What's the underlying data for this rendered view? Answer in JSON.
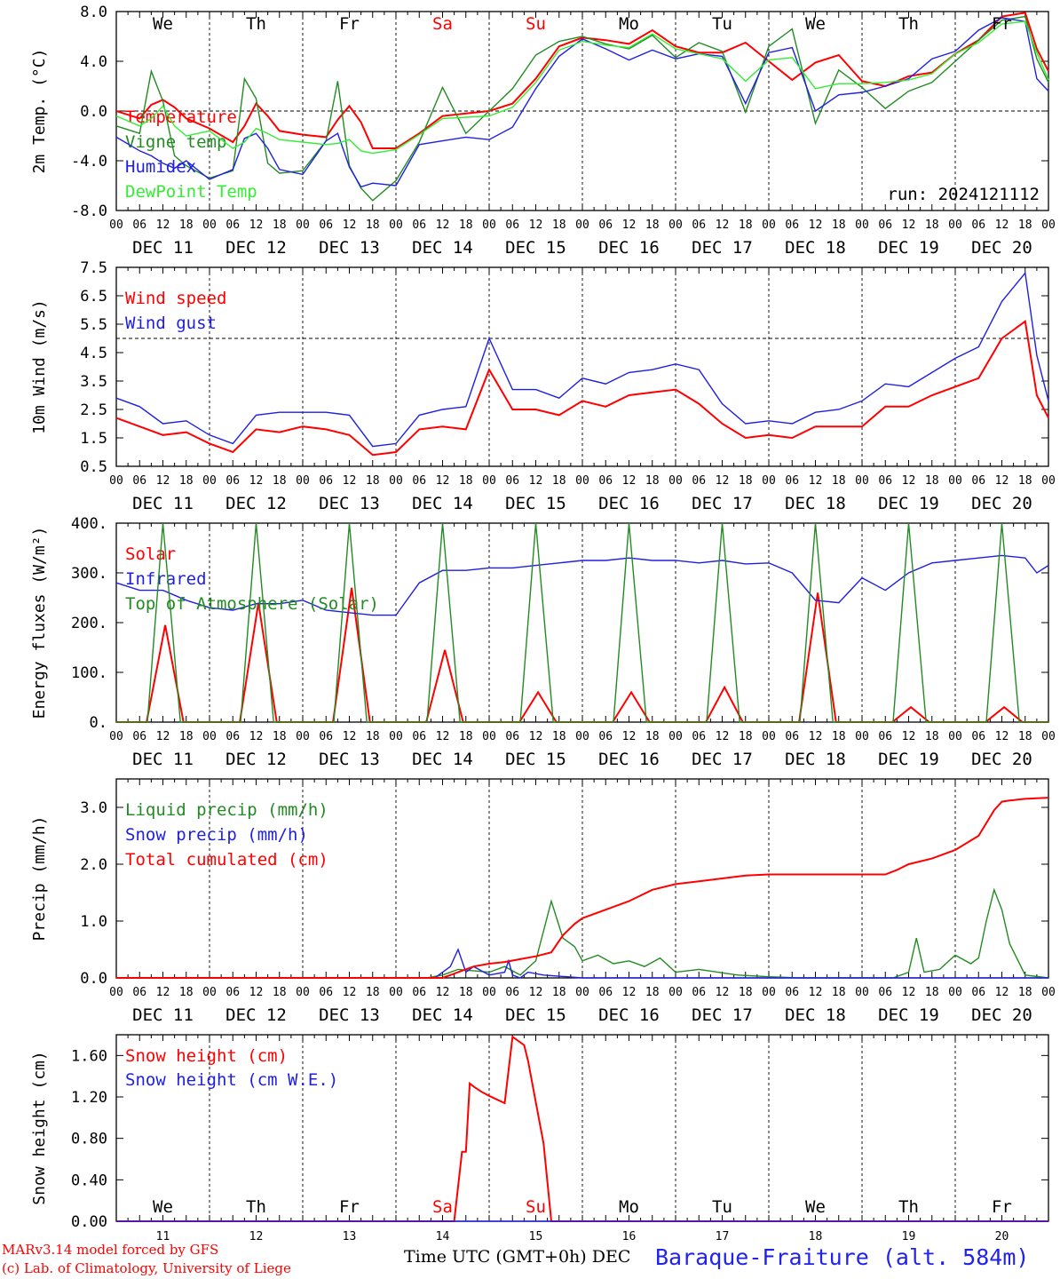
{
  "footer": {
    "model_line": "MARv3.14 model forced by GFS",
    "lab_line": "(c) Lab. of Climatology, University of Liege",
    "time_axis": "Time UTC (GMT+0h) DEC",
    "station": "Baraque-Fraiture (alt. 584m)",
    "run": "run: 2024121112"
  },
  "colors": {
    "red": "#ff0000",
    "green": "#228b22",
    "blue": "#1f1fe0",
    "lightgreen": "#33ee33",
    "axis": "#000000"
  },
  "top_weekdays": [
    "We",
    "Th",
    "Fr",
    "Sa",
    "Su",
    "Mo",
    "Tu",
    "We",
    "Th",
    "Fr"
  ],
  "bottom_weekdays": [
    "We",
    "Th",
    "Fr",
    "Sa",
    "Su",
    "Mo",
    "Tu",
    "We",
    "Th",
    "Fr"
  ],
  "bottom_day_numbers": [
    "11",
    "12",
    "13",
    "14",
    "15",
    "16",
    "17",
    "18",
    "19",
    "20"
  ],
  "date_labels": [
    "DEC 11",
    "DEC 12",
    "DEC 13",
    "DEC 14",
    "DEC 15",
    "DEC 16",
    "DEC 17",
    "DEC 18",
    "DEC 19",
    "DEC 20"
  ],
  "hour_labels": [
    "00",
    "06",
    "12",
    "18"
  ],
  "chart_data": [
    {
      "type": "line",
      "ylabel": "2m Temp. (°C)",
      "ylim": [
        -8,
        8
      ],
      "yticks": [
        "8.0",
        "4.0",
        "0.0",
        "-4.0",
        "-8.0"
      ],
      "ref_line": 0,
      "x_unit": "hours since DEC 11 00 UTC",
      "series": [
        {
          "name": "Temperature",
          "color": "red",
          "x": [
            0,
            6,
            9,
            12,
            15,
            18,
            24,
            30,
            33,
            36,
            39,
            42,
            48,
            54,
            57,
            60,
            63,
            66,
            72,
            78,
            84,
            90,
            96,
            102,
            108,
            114,
            120,
            126,
            132,
            138,
            144,
            150,
            156,
            162,
            168,
            174,
            180,
            186,
            192,
            198,
            204,
            210,
            216,
            222,
            228,
            234,
            237,
            240
          ],
          "y": [
            0,
            -0.6,
            0.5,
            0.9,
            0.3,
            -0.6,
            -1.4,
            -2.5,
            -1.2,
            0.6,
            -0.4,
            -1.6,
            -1.9,
            -2.1,
            -0.7,
            0.4,
            -0.9,
            -3.0,
            -3.0,
            -1.8,
            -0.4,
            -0.2,
            0,
            0.6,
            2.6,
            5.2,
            5.9,
            5.7,
            5.4,
            6.5,
            5.2,
            4.7,
            4.7,
            5.5,
            4.0,
            2.5,
            3.9,
            4.5,
            2.4,
            2.0,
            2.8,
            3.1,
            4.6,
            5.7,
            7.6,
            7.9,
            5.0,
            3.2
          ]
        },
        {
          "name": "Vigne temp",
          "color": "green",
          "x": [
            0,
            6,
            9,
            12,
            15,
            18,
            24,
            30,
            33,
            36,
            39,
            42,
            48,
            54,
            57,
            60,
            63,
            66,
            72,
            78,
            84,
            90,
            96,
            102,
            108,
            114,
            120,
            126,
            132,
            138,
            144,
            150,
            156,
            162,
            168,
            174,
            180,
            186,
            192,
            198,
            204,
            210,
            216,
            222,
            228,
            234,
            237,
            240
          ],
          "y": [
            -1.2,
            -1.8,
            3.2,
            0.8,
            -3.6,
            -4.4,
            -5.4,
            -4.8,
            2.6,
            1.0,
            -4.2,
            -5.0,
            -4.8,
            -2.4,
            2.4,
            -4.4,
            -6.2,
            -7.2,
            -5.6,
            -2.5,
            1.9,
            -1.8,
            0,
            1.8,
            4.5,
            5.6,
            6.0,
            5.4,
            5.0,
            6.1,
            4.3,
            5.5,
            4.8,
            -0.1,
            5.2,
            6.6,
            -1.0,
            3.3,
            1.9,
            0.2,
            1.6,
            2.3,
            4.0,
            5.7,
            7.3,
            7.6,
            4.2,
            2.3
          ]
        },
        {
          "name": "Humidex",
          "color": "blue",
          "x": [
            0,
            6,
            9,
            12,
            15,
            18,
            24,
            30,
            33,
            36,
            39,
            42,
            48,
            54,
            57,
            60,
            63,
            66,
            72,
            78,
            84,
            90,
            96,
            102,
            108,
            114,
            120,
            126,
            132,
            138,
            144,
            150,
            156,
            162,
            168,
            174,
            180,
            186,
            192,
            198,
            204,
            210,
            216,
            222,
            228,
            234,
            237,
            240
          ],
          "y": [
            -2.1,
            -3.2,
            -3.6,
            -4.2,
            -4.6,
            -4.0,
            -5.5,
            -4.7,
            -2.2,
            -1.8,
            -3.0,
            -4.7,
            -5.1,
            -2.4,
            -1.8,
            -4.5,
            -6.1,
            -5.8,
            -6.0,
            -2.7,
            -2.4,
            -2.1,
            -2.3,
            -1.3,
            1.8,
            4.4,
            5.8,
            5.0,
            4.1,
            4.9,
            4.2,
            4.6,
            4.4,
            0.6,
            4.7,
            5.1,
            0.0,
            1.3,
            1.5,
            2.0,
            2.6,
            4.2,
            4.8,
            6.5,
            7.5,
            7.2,
            2.6,
            1.6
          ]
        },
        {
          "name": "DewPoint Temp",
          "color": "lightgreen",
          "x": [
            0,
            6,
            9,
            12,
            15,
            18,
            24,
            30,
            33,
            36,
            39,
            42,
            48,
            54,
            57,
            60,
            63,
            66,
            72,
            78,
            84,
            90,
            96,
            102,
            108,
            114,
            120,
            126,
            132,
            138,
            144,
            150,
            156,
            162,
            168,
            174,
            180,
            186,
            192,
            198,
            204,
            210,
            216,
            222,
            228,
            234,
            237,
            240
          ],
          "y": [
            -0.4,
            -1.2,
            -0.6,
            0.4,
            -1.2,
            -2.0,
            -1.6,
            -3.0,
            -2.5,
            -1.4,
            -1.8,
            -2.3,
            -2.5,
            -2.7,
            -2.6,
            -2.3,
            -3.2,
            -3.4,
            -3.1,
            -1.9,
            -0.6,
            -0.5,
            -0.4,
            0.3,
            2.3,
            4.9,
            5.6,
            5.3,
            5.1,
            6.2,
            5.0,
            4.6,
            4.2,
            2.4,
            4.1,
            4.3,
            1.8,
            2.2,
            2.2,
            2.3,
            2.5,
            3.0,
            4.6,
            5.5,
            7.0,
            7.2,
            4.7,
            2.5
          ]
        }
      ]
    },
    {
      "type": "line",
      "ylabel": "10m Wind (m/s)",
      "ylim": [
        0.5,
        7.5
      ],
      "yticks": [
        "7.5",
        "6.5",
        "5.5",
        "4.5",
        "3.5",
        "2.5",
        "1.5",
        "0.5"
      ],
      "ref_line": 5,
      "series": [
        {
          "name": "Wind speed",
          "color": "red",
          "x": [
            0,
            6,
            12,
            18,
            24,
            30,
            36,
            42,
            48,
            54,
            60,
            66,
            72,
            78,
            84,
            90,
            96,
            102,
            108,
            114,
            120,
            126,
            132,
            138,
            144,
            150,
            156,
            162,
            168,
            174,
            180,
            186,
            192,
            198,
            204,
            210,
            216,
            222,
            228,
            234,
            237,
            240
          ],
          "y": [
            2.2,
            1.9,
            1.6,
            1.7,
            1.3,
            1.0,
            1.8,
            1.7,
            1.9,
            1.8,
            1.6,
            0.9,
            1.0,
            1.8,
            1.9,
            1.8,
            3.9,
            2.5,
            2.5,
            2.3,
            2.8,
            2.6,
            3.0,
            3.1,
            3.2,
            2.7,
            2.0,
            1.5,
            1.6,
            1.5,
            1.9,
            1.9,
            1.9,
            2.6,
            2.6,
            3.0,
            3.3,
            3.6,
            5.0,
            5.6,
            3.0,
            2.2
          ]
        },
        {
          "name": "Wind gust",
          "color": "blue",
          "x": [
            0,
            6,
            12,
            18,
            24,
            30,
            36,
            42,
            48,
            54,
            60,
            66,
            72,
            78,
            84,
            90,
            96,
            102,
            108,
            114,
            120,
            126,
            132,
            138,
            144,
            150,
            156,
            162,
            168,
            174,
            180,
            186,
            192,
            198,
            204,
            210,
            216,
            222,
            228,
            234,
            237,
            240
          ],
          "y": [
            2.9,
            2.6,
            2.0,
            2.1,
            1.6,
            1.3,
            2.3,
            2.4,
            2.4,
            2.4,
            2.3,
            1.2,
            1.3,
            2.3,
            2.5,
            2.6,
            5.0,
            3.2,
            3.2,
            2.9,
            3.6,
            3.4,
            3.8,
            3.9,
            4.1,
            3.9,
            2.7,
            2.0,
            2.1,
            2.0,
            2.4,
            2.5,
            2.8,
            3.4,
            3.3,
            3.8,
            4.3,
            4.7,
            6.3,
            7.3,
            4.4,
            2.8
          ]
        }
      ]
    },
    {
      "type": "line",
      "ylabel": "Energy fluxes (W/m²)",
      "ylim": [
        0,
        400
      ],
      "yticks": [
        "400.",
        "300.",
        "200.",
        "100.",
        "0."
      ],
      "series": [
        {
          "name": "Solar",
          "color": "red",
          "peaks": [
            195,
            240,
            270,
            145,
            60,
            60,
            70,
            260,
            30,
            30
          ]
        },
        {
          "name": "Infrared",
          "color": "blue",
          "x": [
            0,
            6,
            12,
            18,
            24,
            30,
            36,
            42,
            48,
            54,
            60,
            66,
            72,
            78,
            84,
            90,
            96,
            102,
            108,
            114,
            120,
            126,
            132,
            138,
            144,
            150,
            156,
            162,
            168,
            174,
            180,
            186,
            192,
            198,
            204,
            210,
            216,
            222,
            228,
            234,
            237,
            240
          ],
          "y": [
            280,
            265,
            265,
            245,
            230,
            225,
            238,
            238,
            245,
            225,
            220,
            215,
            215,
            280,
            305,
            305,
            310,
            310,
            315,
            320,
            325,
            325,
            330,
            325,
            325,
            320,
            325,
            318,
            320,
            300,
            245,
            240,
            290,
            265,
            300,
            320,
            325,
            330,
            335,
            330,
            300,
            315
          ]
        },
        {
          "name": "Top of Atmosphere (Solar)",
          "color": "green",
          "peaks": [
            400,
            400,
            400,
            400,
            400,
            400,
            400,
            400,
            400,
            400
          ]
        }
      ]
    },
    {
      "type": "line",
      "ylabel": "Precip (mm/h)",
      "ylim": [
        0,
        3.5
      ],
      "yticks": [
        "3.0",
        "2.0",
        "1.0",
        "0.0"
      ],
      "series": [
        {
          "name": "Liquid precip (mm/h)",
          "color": "green",
          "x": [
            0,
            80,
            84,
            88,
            96,
            100,
            104,
            108,
            112,
            115,
            118,
            120,
            124,
            128,
            132,
            136,
            140,
            144,
            150,
            160,
            168,
            176,
            200,
            204,
            206,
            208,
            212,
            216,
            220,
            222,
            224,
            226,
            228,
            230,
            234,
            240
          ],
          "y": [
            0,
            0,
            0.05,
            0.15,
            0.1,
            0.2,
            0.05,
            0.3,
            1.35,
            0.7,
            0.55,
            0.3,
            0.4,
            0.25,
            0.3,
            0.2,
            0.35,
            0.1,
            0.15,
            0.05,
            0.02,
            0,
            0,
            0.1,
            0.7,
            0.1,
            0.15,
            0.4,
            0.25,
            0.35,
            1.0,
            1.55,
            1.2,
            0.6,
            0.05,
            0
          ]
        },
        {
          "name": "Snow precip (mm/h)",
          "color": "blue",
          "x": [
            0,
            82,
            86,
            88,
            90,
            92,
            96,
            100,
            101,
            102,
            104,
            106,
            110,
            120,
            240
          ],
          "y": [
            0,
            0,
            0.2,
            0.5,
            0.1,
            0.2,
            0.05,
            0.1,
            0.3,
            0.05,
            0,
            0.1,
            0.05,
            0,
            0
          ]
        },
        {
          "name": "Total cumulated (cm)",
          "color": "red",
          "x": [
            0,
            84,
            88,
            92,
            96,
            100,
            104,
            108,
            112,
            115,
            118,
            120,
            126,
            132,
            138,
            144,
            150,
            156,
            162,
            168,
            174,
            180,
            186,
            192,
            198,
            201,
            204,
            210,
            216,
            222,
            226,
            228,
            230,
            234,
            240
          ],
          "y": [
            0,
            0,
            0.1,
            0.2,
            0.25,
            0.28,
            0.33,
            0.38,
            0.45,
            0.75,
            0.95,
            1.05,
            1.2,
            1.35,
            1.55,
            1.65,
            1.7,
            1.75,
            1.8,
            1.82,
            1.82,
            1.82,
            1.82,
            1.82,
            1.82,
            1.9,
            2.0,
            2.1,
            2.25,
            2.5,
            2.95,
            3.1,
            3.12,
            3.15,
            3.17
          ]
        }
      ]
    },
    {
      "type": "line",
      "ylabel": "Snow height (cm)",
      "ylim": [
        0,
        1.8
      ],
      "yticks": [
        "1.60",
        "1.20",
        "0.80",
        "0.40",
        "0.00"
      ],
      "series": [
        {
          "name": "Snow height (cm)",
          "color": "red",
          "x": [
            0,
            87,
            89,
            90,
            91,
            92,
            94,
            96,
            100,
            102,
            105,
            106,
            108,
            110,
            112,
            113,
            240
          ],
          "y": [
            0,
            0,
            0.67,
            0.67,
            1.33,
            1.3,
            1.25,
            1.21,
            1.14,
            1.78,
            1.7,
            1.55,
            1.15,
            0.75,
            0,
            0,
            0
          ]
        },
        {
          "name": "Snow height (cm W.E.)",
          "color": "blue",
          "x": [
            0,
            240
          ],
          "y": [
            0,
            0
          ]
        }
      ]
    }
  ]
}
